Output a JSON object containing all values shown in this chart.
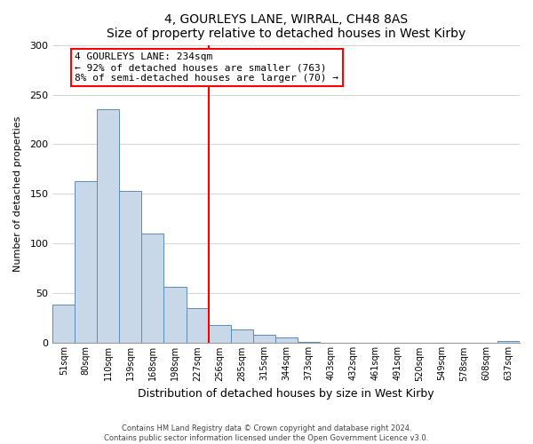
{
  "title": "4, GOURLEYS LANE, WIRRAL, CH48 8AS",
  "subtitle": "Size of property relative to detached houses in West Kirby",
  "xlabel": "Distribution of detached houses by size in West Kirby",
  "ylabel": "Number of detached properties",
  "bar_labels": [
    "51sqm",
    "80sqm",
    "110sqm",
    "139sqm",
    "168sqm",
    "198sqm",
    "227sqm",
    "256sqm",
    "285sqm",
    "315sqm",
    "344sqm",
    "373sqm",
    "403sqm",
    "432sqm",
    "461sqm",
    "491sqm",
    "520sqm",
    "549sqm",
    "578sqm",
    "608sqm",
    "637sqm"
  ],
  "bar_heights": [
    39,
    163,
    235,
    153,
    110,
    57,
    35,
    18,
    14,
    8,
    6,
    1,
    0,
    0,
    0,
    0,
    0,
    0,
    0,
    0,
    2
  ],
  "bar_color": "#c8d8e8",
  "bar_edge_color": "#5b8db8",
  "vline_x_idx": 6,
  "vline_color": "red",
  "annotation_line1": "4 GOURLEYS LANE: 234sqm",
  "annotation_line2": "← 92% of detached houses are smaller (763)",
  "annotation_line3": "8% of semi-detached houses are larger (70) →",
  "annotation_box_color": "white",
  "annotation_box_edge_color": "red",
  "ylim": [
    0,
    300
  ],
  "yticks": [
    0,
    50,
    100,
    150,
    200,
    250,
    300
  ],
  "footer1": "Contains HM Land Registry data © Crown copyright and database right 2024.",
  "footer2": "Contains public sector information licensed under the Open Government Licence v3.0.",
  "bg_color": "white",
  "grid_color": "#cccccc"
}
